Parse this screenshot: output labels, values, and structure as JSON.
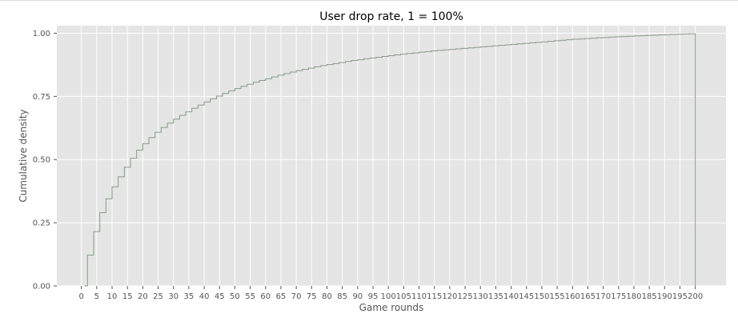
{
  "chart_data": {
    "type": "line",
    "subtype": "cumulative-step",
    "title": "User drop rate, 1 = 100%",
    "xlabel": "Game rounds",
    "ylabel": "Cumulative density",
    "xlim": [
      -8,
      210
    ],
    "ylim": [
      0,
      1.03
    ],
    "xticks": [
      0,
      5,
      10,
      15,
      20,
      25,
      30,
      35,
      40,
      45,
      50,
      55,
      60,
      65,
      70,
      75,
      80,
      85,
      90,
      95,
      100,
      105,
      110,
      115,
      120,
      125,
      130,
      135,
      140,
      145,
      150,
      155,
      160,
      165,
      170,
      175,
      180,
      185,
      190,
      195,
      200
    ],
    "xtick_labels": [
      "0",
      "5",
      "10",
      "15",
      "20",
      "25",
      "30",
      "35",
      "40",
      "45",
      "50",
      "55",
      "60",
      "65",
      "70",
      "75",
      "80",
      "85",
      "90",
      "95",
      "100",
      "105",
      "110",
      "115",
      "120",
      "125",
      "130",
      "135",
      "140",
      "145",
      "150",
      "155",
      "160",
      "165",
      "170",
      "175",
      "180",
      "185",
      "190",
      "195",
      "200"
    ],
    "yticks": [
      0,
      0.25,
      0.5,
      0.75,
      1.0
    ],
    "ytick_labels": [
      "0.00",
      "0.25",
      "0.50",
      "0.75",
      "1.00"
    ],
    "grid": true,
    "legend": false,
    "colors": {
      "background": "#e5e5e5",
      "grid": "#ffffff",
      "line": "#8a9a8a",
      "tick_text": "#555555",
      "title_text": "#000000"
    },
    "series": [
      {
        "x": [
          1,
          2,
          4,
          6,
          8,
          10,
          12,
          14,
          16,
          18,
          20,
          22,
          24,
          26,
          28,
          30,
          32,
          34,
          36,
          38,
          40,
          42,
          44,
          46,
          48,
          50,
          52,
          54,
          56,
          58,
          60,
          62,
          64,
          66,
          68,
          70,
          72,
          74,
          76,
          78,
          80,
          82,
          84,
          86,
          88,
          90,
          92,
          94,
          96,
          98,
          100,
          102,
          104,
          106,
          108,
          110,
          112,
          114,
          116,
          118,
          120,
          122,
          124,
          126,
          128,
          130,
          132,
          134,
          136,
          138,
          140,
          142,
          144,
          146,
          148,
          150,
          152,
          154,
          156,
          158,
          160,
          162,
          164,
          166,
          168,
          170,
          172,
          174,
          176,
          178,
          180,
          182,
          184,
          186,
          188,
          190,
          192,
          194,
          196,
          198,
          200
        ],
        "y": [
          0,
          0.122,
          0.215,
          0.29,
          0.345,
          0.392,
          0.432,
          0.47,
          0.505,
          0.537,
          0.563,
          0.587,
          0.608,
          0.627,
          0.644,
          0.66,
          0.675,
          0.689,
          0.703,
          0.716,
          0.728,
          0.74,
          0.751,
          0.762,
          0.772,
          0.781,
          0.79,
          0.798,
          0.806,
          0.813,
          0.82,
          0.827,
          0.834,
          0.84,
          0.846,
          0.852,
          0.857,
          0.862,
          0.867,
          0.872,
          0.876,
          0.88,
          0.884,
          0.888,
          0.892,
          0.895,
          0.899,
          0.902,
          0.905,
          0.908,
          0.911,
          0.914,
          0.917,
          0.92,
          0.922,
          0.925,
          0.927,
          0.93,
          0.932,
          0.934,
          0.936,
          0.938,
          0.94,
          0.942,
          0.944,
          0.946,
          0.948,
          0.95,
          0.952,
          0.954,
          0.956,
          0.958,
          0.96,
          0.962,
          0.964,
          0.966,
          0.968,
          0.97,
          0.972,
          0.974,
          0.976,
          0.977,
          0.979,
          0.98,
          0.982,
          0.983,
          0.985,
          0.986,
          0.987,
          0.988,
          0.989,
          0.99,
          0.991,
          0.992,
          0.993,
          0.994,
          0.995,
          0.996,
          0.997,
          0.998,
          1.0
        ]
      }
    ]
  }
}
